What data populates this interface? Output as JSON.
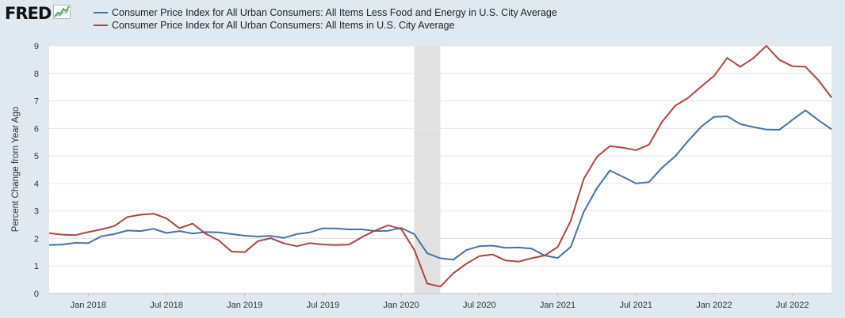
{
  "header": {
    "logo_text": "FRED",
    "logo_icon": "trend-line-icon"
  },
  "colors": {
    "background": "#e1e9f0",
    "plot_background": "#ffffff",
    "grid": "#e6e6e6",
    "recession": "#e1e1e1",
    "series_core": "#4572a7",
    "series_all": "#aa4643"
  },
  "chart_data": {
    "type": "line",
    "title": "",
    "xlabel": "",
    "ylabel": "Percent Change from Year Ago",
    "ylim": [
      0,
      9
    ],
    "y_ticks": [
      "0",
      "1",
      "2",
      "3",
      "4",
      "5",
      "6",
      "7",
      "8",
      "9"
    ],
    "x_range": [
      "2017-10",
      "2022-10"
    ],
    "x_ticks": [
      {
        "date": "2018-01",
        "label": "Jan 2018"
      },
      {
        "date": "2018-07",
        "label": "Jul 2018"
      },
      {
        "date": "2019-01",
        "label": "Jan 2019"
      },
      {
        "date": "2019-07",
        "label": "Jul 2019"
      },
      {
        "date": "2020-01",
        "label": "Jan 2020"
      },
      {
        "date": "2020-07",
        "label": "Jul 2020"
      },
      {
        "date": "2021-01",
        "label": "Jan 2021"
      },
      {
        "date": "2021-07",
        "label": "Jul 2021"
      },
      {
        "date": "2022-01",
        "label": "Jan 2022"
      },
      {
        "date": "2022-07",
        "label": "Jul 2022"
      }
    ],
    "grid": true,
    "legend_position": "top-left",
    "recession": {
      "start": "2020-02",
      "end": "2020-04"
    },
    "x": [
      "2017-10",
      "2017-11",
      "2017-12",
      "2018-01",
      "2018-02",
      "2018-03",
      "2018-04",
      "2018-05",
      "2018-06",
      "2018-07",
      "2018-08",
      "2018-09",
      "2018-10",
      "2018-11",
      "2018-12",
      "2019-01",
      "2019-02",
      "2019-03",
      "2019-04",
      "2019-05",
      "2019-06",
      "2019-07",
      "2019-08",
      "2019-09",
      "2019-10",
      "2019-11",
      "2019-12",
      "2020-01",
      "2020-02",
      "2020-03",
      "2020-04",
      "2020-05",
      "2020-06",
      "2020-07",
      "2020-08",
      "2020-09",
      "2020-10",
      "2020-11",
      "2020-12",
      "2021-01",
      "2021-02",
      "2021-03",
      "2021-04",
      "2021-05",
      "2021-06",
      "2021-07",
      "2021-08",
      "2021-09",
      "2021-10",
      "2021-11",
      "2021-12",
      "2022-01",
      "2022-02",
      "2022-03",
      "2022-04",
      "2022-05",
      "2022-06",
      "2022-07",
      "2022-08",
      "2022-09",
      "2022-10"
    ],
    "series": [
      {
        "name": "Consumer Price Index for All Urban Consumers: All Items Less Food and Energy in U.S. City Average",
        "color": "#4572a7",
        "values": [
          1.76,
          1.78,
          1.84,
          1.83,
          2.08,
          2.16,
          2.29,
          2.27,
          2.35,
          2.2,
          2.27,
          2.18,
          2.23,
          2.22,
          2.16,
          2.1,
          2.07,
          2.09,
          2.02,
          2.16,
          2.22,
          2.37,
          2.36,
          2.33,
          2.33,
          2.27,
          2.28,
          2.38,
          2.16,
          1.46,
          1.28,
          1.23,
          1.58,
          1.72,
          1.74,
          1.66,
          1.67,
          1.63,
          1.38,
          1.29,
          1.69,
          2.97,
          3.82,
          4.47,
          4.24,
          4.0,
          4.05,
          4.57,
          4.98,
          5.54,
          6.06,
          6.42,
          6.44,
          6.16,
          6.05,
          5.96,
          5.95,
          6.31,
          6.66,
          6.3,
          5.97
        ]
      },
      {
        "name": "Consumer Price Index for All Urban Consumers: All Items in U.S. City Average",
        "color": "#aa4643",
        "values": [
          2.19,
          2.14,
          2.12,
          2.23,
          2.33,
          2.45,
          2.78,
          2.86,
          2.9,
          2.73,
          2.37,
          2.54,
          2.17,
          1.93,
          1.52,
          1.5,
          1.9,
          2.01,
          1.82,
          1.72,
          1.83,
          1.78,
          1.76,
          1.78,
          2.05,
          2.29,
          2.48,
          2.34,
          1.59,
          0.36,
          0.25,
          0.74,
          1.08,
          1.36,
          1.42,
          1.2,
          1.16,
          1.28,
          1.38,
          1.69,
          2.64,
          4.17,
          4.96,
          5.36,
          5.3,
          5.21,
          5.41,
          6.23,
          6.82,
          7.11,
          7.52,
          7.91,
          8.56,
          8.24,
          8.55,
          9.0,
          8.49,
          8.26,
          8.24,
          7.75,
          7.12
        ]
      }
    ]
  }
}
